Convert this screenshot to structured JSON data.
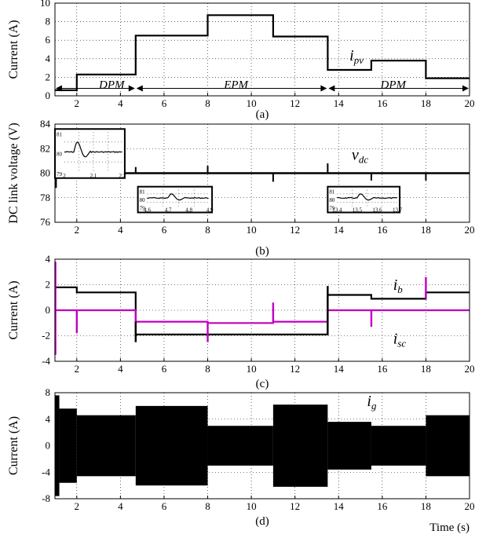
{
  "chart_data": [
    {
      "id": "a",
      "type": "line",
      "caption": "(a)",
      "ylabel": "Current (A)",
      "xlim": [
        1,
        20
      ],
      "ylim": [
        0,
        10
      ],
      "xticks": [
        2,
        4,
        6,
        8,
        10,
        12,
        14,
        16,
        18,
        20
      ],
      "yticks": [
        0,
        2,
        4,
        6,
        8,
        10
      ],
      "grid": true,
      "series": [
        {
          "name": "i_pv",
          "color": "#000000",
          "x": [
            1,
            2,
            2,
            4.7,
            4.7,
            8,
            8,
            11,
            11,
            13.5,
            13.5,
            15.5,
            15.5,
            18,
            18,
            20
          ],
          "y": [
            0.6,
            0.6,
            2.3,
            2.3,
            6.5,
            6.5,
            8.7,
            8.7,
            6.4,
            6.4,
            2.8,
            2.8,
            3.8,
            3.8,
            1.9,
            1.9
          ]
        }
      ],
      "labels": [
        {
          "text": "i",
          "sub": "pv",
          "x": 14.5,
          "y": 3.8
        },
        {
          "text": "DPM",
          "x": 3.6,
          "y": 0.8
        },
        {
          "text": "EPM",
          "x": 9.3,
          "y": 0.8
        },
        {
          "text": "DPM",
          "x": 16.5,
          "y": 0.8
        }
      ],
      "mode_spans": [
        [
          1,
          4.7
        ],
        [
          4.7,
          13.5
        ],
        [
          13.5,
          20
        ]
      ]
    },
    {
      "id": "b",
      "type": "line",
      "caption": "(b)",
      "ylabel": "DC link voltage (V)",
      "xlim": [
        1,
        20
      ],
      "ylim": [
        76,
        84
      ],
      "xticks": [
        2,
        4,
        6,
        8,
        10,
        12,
        14,
        16,
        18,
        20
      ],
      "yticks": [
        76,
        78,
        80,
        82,
        84
      ],
      "grid": true,
      "series": [
        {
          "name": "v_dc",
          "color": "#000000",
          "baseline": 80,
          "spikes": [
            {
              "x": 1.05,
              "y": 78.8
            },
            {
              "x": 2.0,
              "y": 80.5
            },
            {
              "x": 4.7,
              "y": 80.5
            },
            {
              "x": 8.0,
              "y": 80.6
            },
            {
              "x": 11.0,
              "y": 79.3
            },
            {
              "x": 13.5,
              "y": 80.8
            },
            {
              "x": 15.5,
              "y": 79.4
            },
            {
              "x": 18.0,
              "y": 79.4
            }
          ]
        }
      ],
      "labels": [
        {
          "text": "v",
          "sub": "dc",
          "x": 14.6,
          "y": 81.1
        }
      ],
      "insets": [
        {
          "xlim": [
            1.9,
            2.2
          ],
          "xticks": [
            "2",
            "2.1",
            "2.2"
          ],
          "yticks": [
            "81",
            "80",
            "79"
          ],
          "event": 1.95,
          "pos": [
            1.0,
            83.6,
            4.2,
            79.6
          ]
        },
        {
          "xlim": [
            4.6,
            4.9
          ],
          "xticks": [
            "4.6",
            "4.7",
            "4.8",
            "4.9"
          ],
          "yticks": [
            "81",
            "80",
            "79"
          ],
          "event": 4.7,
          "pos": [
            4.8,
            78.9,
            8.2,
            76.8
          ]
        },
        {
          "xlim": [
            13.4,
            13.7
          ],
          "xticks": [
            "13.4",
            "13.5",
            "13.6",
            "13.7"
          ],
          "yticks": [
            "81",
            "80",
            "79"
          ],
          "event": 13.5,
          "pos": [
            13.5,
            78.9,
            16.8,
            76.8
          ]
        }
      ]
    },
    {
      "id": "c",
      "type": "line",
      "caption": "(c)",
      "ylabel": "Current (A)",
      "xlim": [
        1,
        20
      ],
      "ylim": [
        -4,
        4
      ],
      "xticks": [
        2,
        4,
        6,
        8,
        10,
        12,
        14,
        16,
        18,
        20
      ],
      "yticks": [
        -4,
        -2,
        0,
        2,
        4
      ],
      "grid": true,
      "series": [
        {
          "name": "i_b",
          "color": "#000000",
          "x": [
            1,
            2,
            2,
            4.7,
            4.7,
            13.5,
            13.5,
            15.5,
            15.5,
            18,
            18,
            20
          ],
          "y": [
            1.8,
            1.8,
            1.4,
            1.4,
            -1.9,
            -1.9,
            1.2,
            1.2,
            0.9,
            0.9,
            1.4,
            1.4
          ]
        },
        {
          "name": "i_sc",
          "color": "#c000c0",
          "x": [
            1,
            4.7,
            4.7,
            8,
            8,
            11,
            11,
            13.5,
            13.5,
            20
          ],
          "y": [
            0,
            0,
            -0.9,
            -0.9,
            -1.0,
            -1.0,
            -0.9,
            -0.9,
            0,
            0
          ]
        }
      ],
      "labels": [
        {
          "text": "i",
          "sub": "b",
          "x": 16.5,
          "y": 1.6
        },
        {
          "text": "i",
          "sub": "sc",
          "x": 16.5,
          "y": -2.6
        }
      ]
    },
    {
      "id": "d",
      "type": "area",
      "caption": "(d)",
      "ylabel": "Current (A)",
      "xlabel": "Time (s)",
      "xlim": [
        1,
        20
      ],
      "ylim": [
        -8,
        8
      ],
      "xticks": [
        2,
        4,
        6,
        8,
        10,
        12,
        14,
        16,
        18,
        20
      ],
      "yticks": [
        -8,
        -4,
        0,
        4,
        8
      ],
      "grid": true,
      "series": [
        {
          "name": "i_g",
          "color": "#000000",
          "envelope": [
            {
              "x0": 1.0,
              "x1": 1.2,
              "amp": 7.6
            },
            {
              "x0": 1.2,
              "x1": 2.0,
              "amp": 5.6
            },
            {
              "x0": 2.0,
              "x1": 4.7,
              "amp": 4.6
            },
            {
              "x0": 4.7,
              "x1": 8.0,
              "amp": 6.0
            },
            {
              "x0": 8.0,
              "x1": 11.0,
              "amp": 3.0
            },
            {
              "x0": 11.0,
              "x1": 13.5,
              "amp": 6.2
            },
            {
              "x0": 13.5,
              "x1": 15.5,
              "amp": 3.6
            },
            {
              "x0": 15.5,
              "x1": 18.0,
              "amp": 3.0
            },
            {
              "x0": 18.0,
              "x1": 20.0,
              "amp": 4.6
            }
          ]
        }
      ],
      "labels": [
        {
          "text": "i",
          "sub": "g",
          "x": 15.3,
          "y": 6.0
        }
      ]
    }
  ]
}
